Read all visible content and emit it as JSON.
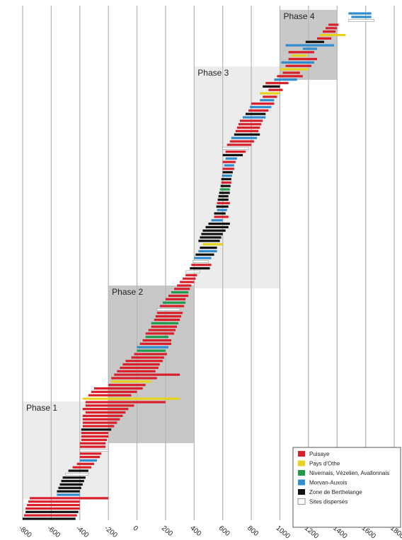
{
  "chart_data": {
    "type": "timeline",
    "x_ticks": [
      "-800",
      "-600",
      "-400",
      "-200",
      "0",
      "200",
      "400",
      "600",
      "800",
      "1000",
      "1200",
      "1400",
      "1600",
      "1800"
    ],
    "xlim": [
      -800,
      1800
    ],
    "grid": "vertical",
    "legend_position": "bottom-right",
    "phases": [
      {
        "label": "Phase 1",
        "start": -800,
        "end": -200,
        "shade": "#ececec"
      },
      {
        "label": "Phase 2",
        "start": -200,
        "end": 400,
        "shade": "#c8c8c8"
      },
      {
        "label": "Phase 3",
        "start": 400,
        "end": 1000,
        "shade": "#ececec"
      },
      {
        "label": "Phase 4",
        "start": 1000,
        "end": 1400,
        "shade": "#c8c8c8"
      }
    ],
    "series": [
      {
        "name": "Puisaye",
        "color": "#d9202a"
      },
      {
        "name": "Pays d'Othe",
        "color": "#e6d21c"
      },
      {
        "name": "Nivernais, Vézelien, Avallonnais",
        "color": "#1f9a4a"
      },
      {
        "name": "Morvan-Auxois",
        "color": "#2f8ccf"
      },
      {
        "name": "Zone de Berthelange",
        "color": "#111111"
      },
      {
        "name": "Sites dispersés",
        "color": "#ffffff"
      }
    ],
    "intervals": [
      {
        "series": "Puisaye",
        "start": 1340,
        "end": 1410
      },
      {
        "series": "Puisaye",
        "start": 1320,
        "end": 1400
      },
      {
        "series": "Puisaye",
        "start": 1300,
        "end": 1390
      },
      {
        "series": "Pays d'Othe",
        "start": 1280,
        "end": 1460
      },
      {
        "series": "Puisaye",
        "start": 1260,
        "end": 1360
      },
      {
        "series": "Zone de Berthelange",
        "start": 1180,
        "end": 1310
      },
      {
        "series": "Morvan-Auxois",
        "start": 1040,
        "end": 1380
      },
      {
        "series": "Morvan-Auxois",
        "start": 1160,
        "end": 1260
      },
      {
        "series": "Puisaye",
        "start": 1060,
        "end": 1240
      },
      {
        "series": "Pays d'Othe",
        "start": 1080,
        "end": 1190
      },
      {
        "series": "Puisaye",
        "start": 1060,
        "end": 1260
      },
      {
        "series": "Morvan-Auxois",
        "start": 1010,
        "end": 1240
      },
      {
        "series": "Puisaye",
        "start": 1040,
        "end": 1220
      },
      {
        "series": "Pays d'Othe",
        "start": 1000,
        "end": 1200
      },
      {
        "series": "Puisaye",
        "start": 1020,
        "end": 1140
      },
      {
        "series": "Puisaye",
        "start": 980,
        "end": 1160
      },
      {
        "series": "Morvan-Auxois",
        "start": 960,
        "end": 1120
      },
      {
        "series": "Puisaye",
        "start": 900,
        "end": 1060
      },
      {
        "series": "Zone de Berthelange",
        "start": 880,
        "end": 1000
      },
      {
        "series": "Puisaye",
        "start": 920,
        "end": 1020
      },
      {
        "series": "Pays d'Othe",
        "start": 860,
        "end": 1000
      },
      {
        "series": "Puisaye",
        "start": 880,
        "end": 980
      },
      {
        "series": "Morvan-Auxois",
        "start": 860,
        "end": 960
      },
      {
        "series": "Puisaye",
        "start": 800,
        "end": 960
      },
      {
        "series": "Morvan-Auxois",
        "start": 790,
        "end": 940
      },
      {
        "series": "Puisaye",
        "start": 780,
        "end": 920
      },
      {
        "series": "Zone de Berthelange",
        "start": 760,
        "end": 900
      },
      {
        "series": "Morvan-Auxois",
        "start": 740,
        "end": 900
      },
      {
        "series": "Puisaye",
        "start": 720,
        "end": 880
      },
      {
        "series": "Puisaye",
        "start": 710,
        "end": 870
      },
      {
        "series": "Puisaye",
        "start": 700,
        "end": 860
      },
      {
        "series": "Puisaye",
        "start": 690,
        "end": 850
      },
      {
        "series": "Zone de Berthelange",
        "start": 680,
        "end": 860
      },
      {
        "series": "Morvan-Auxois",
        "start": 660,
        "end": 840
      },
      {
        "series": "Puisaye",
        "start": 650,
        "end": 820
      },
      {
        "series": "Puisaye",
        "start": 630,
        "end": 800
      },
      {
        "series": "Sites dispersés",
        "start": 600,
        "end": 780
      },
      {
        "series": "Puisaye",
        "start": 620,
        "end": 760
      },
      {
        "series": "Zone de Berthelange",
        "start": 600,
        "end": 740
      },
      {
        "series": "Morvan-Auxois",
        "start": 620,
        "end": 700
      },
      {
        "series": "Puisaye",
        "start": 600,
        "end": 690
      },
      {
        "series": "Morvan-Auxois",
        "start": 610,
        "end": 680
      },
      {
        "series": "Puisaye",
        "start": 600,
        "end": 680
      },
      {
        "series": "Zone de Berthelange",
        "start": 600,
        "end": 670
      },
      {
        "series": "Morvan-Auxois",
        "start": 595,
        "end": 665
      },
      {
        "series": "Zone de Berthelange",
        "start": 590,
        "end": 660
      },
      {
        "series": "Puisaye",
        "start": 590,
        "end": 660
      },
      {
        "series": "Zone de Berthelange",
        "start": 585,
        "end": 655
      },
      {
        "series": "Nivernais, Vézelien, Avallonnais",
        "start": 580,
        "end": 650
      },
      {
        "series": "Zone de Berthelange",
        "start": 575,
        "end": 650
      },
      {
        "series": "Zone de Berthelange",
        "start": 570,
        "end": 640
      },
      {
        "series": "Zone de Berthelange",
        "start": 565,
        "end": 640
      },
      {
        "series": "Puisaye",
        "start": 560,
        "end": 650
      },
      {
        "series": "Zone de Berthelange",
        "start": 555,
        "end": 640
      },
      {
        "series": "Morvan-Auxois",
        "start": 560,
        "end": 630
      },
      {
        "series": "Zone de Berthelange",
        "start": 540,
        "end": 620
      },
      {
        "series": "Puisaye",
        "start": 540,
        "end": 640
      },
      {
        "series": "Morvan-Auxois",
        "start": 520,
        "end": 600
      },
      {
        "series": "Zone de Berthelange",
        "start": 500,
        "end": 650
      },
      {
        "series": "Zone de Berthelange",
        "start": 480,
        "end": 640
      },
      {
        "series": "Zone de Berthelange",
        "start": 460,
        "end": 620
      },
      {
        "series": "Zone de Berthelange",
        "start": 450,
        "end": 600
      },
      {
        "series": "Zone de Berthelange",
        "start": 440,
        "end": 590
      },
      {
        "series": "Zone de Berthelange",
        "start": 430,
        "end": 580
      },
      {
        "series": "Pays d'Othe",
        "start": 460,
        "end": 600
      },
      {
        "series": "Zone de Berthelange",
        "start": 440,
        "end": 560
      },
      {
        "series": "Morvan-Auxois",
        "start": 430,
        "end": 560
      },
      {
        "series": "Zone de Berthelange",
        "start": 410,
        "end": 540
      },
      {
        "series": "Morvan-Auxois",
        "start": 400,
        "end": 520
      },
      {
        "series": "Sites dispersés",
        "start": 390,
        "end": 500
      },
      {
        "series": "Puisaye",
        "start": 380,
        "end": 520
      },
      {
        "series": "Zone de Berthelange",
        "start": 370,
        "end": 510
      },
      {
        "series": "Sites dispersés",
        "start": 340,
        "end": 440
      },
      {
        "series": "Puisaye",
        "start": 340,
        "end": 420
      },
      {
        "series": "Puisaye",
        "start": 320,
        "end": 410
      },
      {
        "series": "Puisaye",
        "start": 300,
        "end": 400
      },
      {
        "series": "Puisaye",
        "start": 280,
        "end": 380
      },
      {
        "series": "Puisaye",
        "start": 260,
        "end": 370
      },
      {
        "series": "Nivernais, Vézelien, Avallonnais",
        "start": 240,
        "end": 360
      },
      {
        "series": "Puisaye",
        "start": 220,
        "end": 360
      },
      {
        "series": "Puisaye",
        "start": 200,
        "end": 340
      },
      {
        "series": "Nivernais, Vézelien, Avallonnais",
        "start": 180,
        "end": 340
      },
      {
        "series": "Puisaye",
        "start": 160,
        "end": 330
      },
      {
        "series": "Sites dispersés",
        "start": 140,
        "end": 300
      },
      {
        "series": "Puisaye",
        "start": 140,
        "end": 320
      },
      {
        "series": "Puisaye",
        "start": 130,
        "end": 310
      },
      {
        "series": "Puisaye",
        "start": 120,
        "end": 300
      },
      {
        "series": "Nivernais, Vézelien, Avallonnais",
        "start": 100,
        "end": 290
      },
      {
        "series": "Puisaye",
        "start": 100,
        "end": 280
      },
      {
        "series": "Puisaye",
        "start": 80,
        "end": 270
      },
      {
        "series": "Puisaye",
        "start": 60,
        "end": 260
      },
      {
        "series": "Nivernais, Vézelien, Avallonnais",
        "start": 60,
        "end": 220
      },
      {
        "series": "Puisaye",
        "start": 40,
        "end": 240
      },
      {
        "series": "Puisaye",
        "start": 20,
        "end": 240
      },
      {
        "series": "Morvan-Auxois",
        "start": 0,
        "end": 220
      },
      {
        "series": "Nivernais, Vézelien, Avallonnais",
        "start": 0,
        "end": 200
      },
      {
        "series": "Puisaye",
        "start": -20,
        "end": 210
      },
      {
        "series": "Puisaye",
        "start": -40,
        "end": 190
      },
      {
        "series": "Puisaye",
        "start": -80,
        "end": 180
      },
      {
        "series": "Puisaye",
        "start": -100,
        "end": 160
      },
      {
        "series": "Puisaye",
        "start": -120,
        "end": 150
      },
      {
        "series": "Puisaye",
        "start": -140,
        "end": 130
      },
      {
        "series": "Puisaye",
        "start": -160,
        "end": 300
      },
      {
        "series": "Puisaye",
        "start": -180,
        "end": 140
      },
      {
        "series": "Pays d'Othe",
        "start": -180,
        "end": 100
      },
      {
        "series": "Puisaye",
        "start": -200,
        "end": 60
      },
      {
        "series": "Puisaye",
        "start": -300,
        "end": 40
      },
      {
        "series": "Puisaye",
        "start": -320,
        "end": 0
      },
      {
        "series": "Puisaye",
        "start": -340,
        "end": -40
      },
      {
        "series": "Pays d'Othe",
        "start": -380,
        "end": 300
      },
      {
        "series": "Puisaye",
        "start": -360,
        "end": 200
      },
      {
        "series": "Puisaye",
        "start": -360,
        "end": -20
      },
      {
        "series": "Puisaye",
        "start": -380,
        "end": -60
      },
      {
        "series": "Puisaye",
        "start": -360,
        "end": -80
      },
      {
        "series": "Puisaye",
        "start": -380,
        "end": -100
      },
      {
        "series": "Puisaye",
        "start": -380,
        "end": -120
      },
      {
        "series": "Puisaye",
        "start": -380,
        "end": -140
      },
      {
        "series": "Puisaye",
        "start": -380,
        "end": -160
      },
      {
        "series": "Zone de Berthelange",
        "start": -390,
        "end": -180
      },
      {
        "series": "Puisaye",
        "start": -390,
        "end": -200
      },
      {
        "series": "Puisaye",
        "start": -390,
        "end": -200
      },
      {
        "series": "Puisaye",
        "start": -390,
        "end": -210
      },
      {
        "series": "Puisaye",
        "start": -400,
        "end": -220
      },
      {
        "series": "Puisaye",
        "start": -400,
        "end": -220
      },
      {
        "series": "Sites dispersés",
        "start": -400,
        "end": -200
      },
      {
        "series": "Puisaye",
        "start": -400,
        "end": -250
      },
      {
        "series": "Puisaye",
        "start": -400,
        "end": -260
      },
      {
        "series": "Morvan-Auxois",
        "start": -400,
        "end": -280
      },
      {
        "series": "Puisaye",
        "start": -420,
        "end": -300
      },
      {
        "series": "Puisaye",
        "start": -450,
        "end": -320
      },
      {
        "series": "Zone de Berthelange",
        "start": -480,
        "end": -340
      },
      {
        "series": "Sites dispersés",
        "start": -500,
        "end": -340
      },
      {
        "series": "Zone de Berthelange",
        "start": -520,
        "end": -360
      },
      {
        "series": "Zone de Berthelange",
        "start": -530,
        "end": -370
      },
      {
        "series": "Zone de Berthelange",
        "start": -540,
        "end": -380
      },
      {
        "series": "Zone de Berthelange",
        "start": -550,
        "end": -390
      },
      {
        "series": "Zone de Berthelange",
        "start": -560,
        "end": -400
      },
      {
        "series": "Morvan-Auxois",
        "start": -560,
        "end": -400
      },
      {
        "series": "Puisaye",
        "start": -750,
        "end": -200
      },
      {
        "series": "Puisaye",
        "start": -760,
        "end": -400
      },
      {
        "series": "Puisaye",
        "start": -770,
        "end": -400
      },
      {
        "series": "Puisaye",
        "start": -780,
        "end": -400
      },
      {
        "series": "Zone de Berthelange",
        "start": -780,
        "end": -410
      },
      {
        "series": "Puisaye",
        "start": -790,
        "end": -420
      },
      {
        "series": "Zone de Berthelange",
        "start": -800,
        "end": -430
      }
    ],
    "top_intervals": [
      {
        "series": "Morvan-Auxois",
        "start": 1480,
        "end": 1640
      },
      {
        "series": "Morvan-Auxois",
        "start": 1500,
        "end": 1640
      },
      {
        "series": "Sites dispersés",
        "start": 1480,
        "end": 1660
      }
    ]
  }
}
